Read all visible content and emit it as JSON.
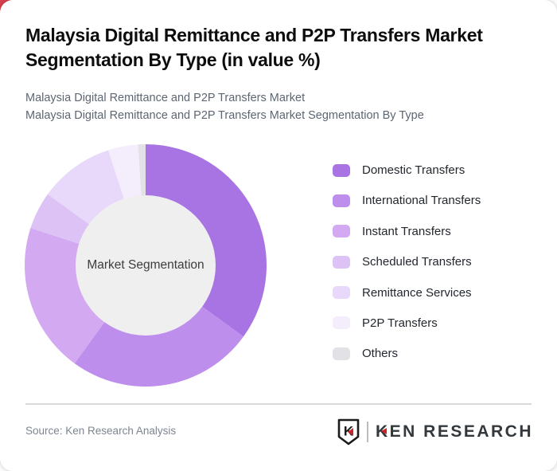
{
  "page": {
    "title": "Malaysia Digital Remittance and P2P Transfers Market Segmentation By Type (in value %)",
    "subtitle_line1": "Malaysia Digital Remittance and P2P Transfers Market",
    "subtitle_line2": "Malaysia Digital Remittance and P2P Transfers Market Segmentation By Type",
    "corner_accent_color": "#d8414f"
  },
  "chart_data": {
    "type": "pie",
    "donut": true,
    "title": "Malaysia Digital Remittance and P2P Transfers Market Segmentation By Type (in value %)",
    "center_label": "Market Segmentation",
    "center_fill": "#f0eff0",
    "start_angle_deg": 0,
    "direction": "clockwise",
    "legend_position": "right",
    "categories": [
      "Domestic Transfers",
      "International Transfers",
      "Instant Transfers",
      "Scheduled Transfers",
      "Remittance Services",
      "P2P Transfers",
      "Others"
    ],
    "values": [
      35,
      25,
      20,
      5,
      10,
      4,
      1
    ],
    "unit": "percent of value",
    "colors": [
      "#a873e3",
      "#bd8eec",
      "#d3aaf1",
      "#ddc3f5",
      "#e8d8f9",
      "#f4edfc",
      "#e2e1e5"
    ]
  },
  "footer": {
    "source": "Source: Ken Research Analysis",
    "logo_text": "KEN RESEARCH",
    "logo_red": "#c9252d",
    "logo_shield_letter": "K"
  }
}
